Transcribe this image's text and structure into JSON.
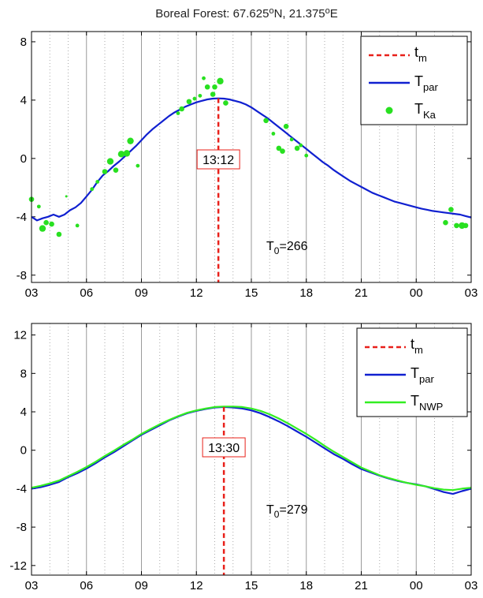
{
  "title": {
    "main": "Boreal Forest: 67.625",
    "deg1": "o",
    "mid": "N, 21.375",
    "deg2": "o",
    "end": "E"
  },
  "legend_symbols": {
    "t_m": "t",
    "t_m_sub": "m",
    "T_par": "T",
    "T_par_sub": "par",
    "T_Ka": "T",
    "T_Ka_sub": "Ka",
    "T_NWP": "T",
    "T_NWP_sub": "NWP"
  },
  "colors": {
    "t_m": "#e8201a",
    "T_par": "#1020d0",
    "T_Ka": "#28e020",
    "T_NWP": "#33ee22",
    "grid_major": "#9a9a9a"
  },
  "chart_data": [
    {
      "type": "line",
      "x_ticks": [
        "03",
        "06",
        "09",
        "12",
        "15",
        "18",
        "21",
        "00",
        "03"
      ],
      "x_tick_hours": [
        3,
        6,
        9,
        12,
        15,
        18,
        21,
        24,
        27
      ],
      "xlim": [
        3,
        27
      ],
      "ylim": [
        -8.5,
        8.7
      ],
      "y_ticks": [
        -8,
        -4,
        0,
        4,
        8
      ],
      "y_tick_labels": [
        "-8",
        "-4",
        "0",
        "4",
        "8"
      ],
      "t_m_hour": 13.2,
      "t_m_label": "13:12",
      "T0_prefix": "T",
      "T0_sub": "0",
      "T0_value": "=266",
      "series": [
        {
          "key": "T_par",
          "kind": "line",
          "x": [
            3.0,
            3.3,
            3.6,
            3.9,
            4.2,
            4.5,
            4.8,
            5.1,
            5.4,
            5.7,
            6.0,
            6.3,
            6.6,
            6.9,
            7.2,
            7.5,
            7.8,
            8.1,
            8.4,
            8.7,
            9.0,
            9.3,
            9.6,
            9.9,
            10.2,
            10.5,
            10.8,
            11.1,
            11.4,
            11.7,
            12.0,
            12.3,
            12.6,
            12.9,
            13.2,
            13.5,
            13.8,
            14.1,
            14.4,
            14.7,
            15.0,
            15.3,
            15.6,
            15.9,
            16.2,
            16.5,
            16.8,
            17.1,
            17.4,
            17.7,
            18.0,
            18.3,
            18.6,
            18.9,
            19.2,
            19.5,
            19.8,
            20.1,
            20.4,
            20.7,
            21.0,
            21.3,
            21.6,
            21.9,
            22.2,
            22.5,
            22.8,
            23.1,
            23.4,
            23.7,
            24.0,
            24.3,
            24.6,
            24.9,
            25.2,
            25.5,
            25.8,
            26.1,
            26.4,
            26.7,
            27.0
          ],
          "y": [
            -4.0,
            -4.25,
            -4.1,
            -4.0,
            -3.85,
            -4.0,
            -3.85,
            -3.55,
            -3.35,
            -3.05,
            -2.6,
            -2.15,
            -1.6,
            -1.15,
            -0.85,
            -0.5,
            -0.2,
            0.15,
            0.5,
            0.85,
            1.25,
            1.65,
            2.0,
            2.3,
            2.6,
            2.9,
            3.15,
            3.35,
            3.55,
            3.7,
            3.85,
            3.95,
            4.05,
            4.1,
            4.12,
            4.1,
            4.05,
            3.95,
            3.85,
            3.7,
            3.5,
            3.25,
            3.0,
            2.75,
            2.45,
            2.15,
            1.85,
            1.55,
            1.25,
            0.95,
            0.65,
            0.35,
            0.05,
            -0.25,
            -0.5,
            -0.8,
            -1.05,
            -1.3,
            -1.55,
            -1.75,
            -1.95,
            -2.15,
            -2.35,
            -2.5,
            -2.65,
            -2.8,
            -2.95,
            -3.05,
            -3.15,
            -3.25,
            -3.35,
            -3.45,
            -3.52,
            -3.6,
            -3.65,
            -3.7,
            -3.75,
            -3.8,
            -3.85,
            -3.95,
            -4.05
          ]
        },
        {
          "key": "T_Ka",
          "kind": "scatter",
          "x": [
            3.0,
            3.4,
            3.6,
            3.8,
            4.1,
            4.5,
            4.9,
            5.5,
            6.3,
            6.6,
            7.0,
            7.3,
            7.6,
            7.9,
            8.2,
            8.4,
            8.8,
            11.0,
            11.2,
            11.6,
            11.9,
            12.2,
            12.4,
            12.6,
            12.9,
            13.0,
            13.3,
            13.6,
            15.8,
            16.2,
            16.5,
            16.7,
            16.9,
            17.2,
            17.5,
            17.7,
            18.0,
            25.6,
            25.9,
            26.2,
            26.5,
            26.7
          ],
          "y": [
            -2.8,
            -3.3,
            -4.8,
            -4.4,
            -4.5,
            -5.2,
            -2.6,
            -4.6,
            -2.1,
            -1.6,
            -0.9,
            -0.2,
            -0.8,
            0.3,
            0.35,
            1.2,
            -0.5,
            3.1,
            3.4,
            3.9,
            4.1,
            4.3,
            5.5,
            4.9,
            4.4,
            4.9,
            5.3,
            3.8,
            2.6,
            1.7,
            0.7,
            0.5,
            2.2,
            1.3,
            0.7,
            0.9,
            0.2,
            -4.4,
            -3.5,
            -4.6,
            -4.6,
            -4.6
          ],
          "size": [
            3,
            2,
            4,
            3,
            3,
            3,
            1,
            2,
            2,
            2,
            3,
            4,
            3,
            4,
            4,
            4,
            2,
            2,
            3,
            3,
            2,
            2,
            2,
            3,
            3,
            3,
            4,
            3,
            3,
            2,
            3,
            3,
            3,
            2,
            3,
            2,
            2,
            3,
            3,
            3,
            4,
            3
          ]
        }
      ]
    },
    {
      "type": "line",
      "x_ticks": [
        "03",
        "06",
        "09",
        "12",
        "15",
        "18",
        "21",
        "00",
        "03"
      ],
      "x_tick_hours": [
        3,
        6,
        9,
        12,
        15,
        18,
        21,
        24,
        27
      ],
      "xlim": [
        3,
        27
      ],
      "ylim": [
        -13,
        13.2
      ],
      "y_ticks": [
        -12,
        -8,
        -4,
        0,
        4,
        8,
        12
      ],
      "y_tick_labels": [
        "-12",
        "-8",
        "-4",
        "0",
        "4",
        "8",
        "12"
      ],
      "t_m_hour": 13.5,
      "t_m_label": "13:30",
      "T0_prefix": "T",
      "T0_sub": "0",
      "T0_value": "=279",
      "series": [
        {
          "key": "T_par",
          "kind": "line",
          "x": [
            3.0,
            3.5,
            4.0,
            4.5,
            5.0,
            5.5,
            6.0,
            6.5,
            7.0,
            7.5,
            8.0,
            8.5,
            9.0,
            9.5,
            10.0,
            10.5,
            11.0,
            11.5,
            12.0,
            12.5,
            13.0,
            13.5,
            14.0,
            14.5,
            15.0,
            15.5,
            16.0,
            16.5,
            17.0,
            17.5,
            18.0,
            18.5,
            19.0,
            19.5,
            20.0,
            20.5,
            21.0,
            21.5,
            22.0,
            22.5,
            23.0,
            23.5,
            24.0,
            24.5,
            25.0,
            25.5,
            26.0,
            26.5,
            27.0
          ],
          "y": [
            -4.0,
            -3.85,
            -3.6,
            -3.3,
            -2.8,
            -2.4,
            -1.9,
            -1.35,
            -0.75,
            -0.2,
            0.4,
            1.0,
            1.6,
            2.1,
            2.6,
            3.1,
            3.5,
            3.85,
            4.1,
            4.3,
            4.45,
            4.5,
            4.45,
            4.35,
            4.15,
            3.85,
            3.45,
            3.0,
            2.5,
            1.95,
            1.4,
            0.8,
            0.2,
            -0.4,
            -0.9,
            -1.45,
            -1.95,
            -2.3,
            -2.65,
            -2.95,
            -3.2,
            -3.4,
            -3.55,
            -3.75,
            -4.05,
            -4.35,
            -4.55,
            -4.25,
            -4.0
          ]
        },
        {
          "key": "T_NWP",
          "kind": "line",
          "x": [
            3.0,
            3.5,
            4.0,
            4.5,
            5.0,
            5.5,
            6.0,
            6.5,
            7.0,
            7.5,
            8.0,
            8.5,
            9.0,
            9.5,
            10.0,
            10.5,
            11.0,
            11.5,
            12.0,
            12.5,
            13.0,
            13.5,
            14.0,
            14.5,
            15.0,
            15.5,
            16.0,
            16.5,
            17.0,
            17.5,
            18.0,
            18.5,
            19.0,
            19.5,
            20.0,
            20.5,
            21.0,
            21.5,
            22.0,
            22.5,
            23.0,
            23.5,
            24.0,
            24.5,
            25.0,
            25.5,
            26.0,
            26.5,
            27.0
          ],
          "y": [
            -3.9,
            -3.7,
            -3.45,
            -3.15,
            -2.7,
            -2.25,
            -1.75,
            -1.2,
            -0.6,
            -0.05,
            0.55,
            1.1,
            1.7,
            2.2,
            2.7,
            3.15,
            3.55,
            3.9,
            4.15,
            4.35,
            4.5,
            4.55,
            4.55,
            4.5,
            4.35,
            4.1,
            3.75,
            3.3,
            2.8,
            2.25,
            1.7,
            1.1,
            0.45,
            -0.15,
            -0.7,
            -1.25,
            -1.8,
            -2.2,
            -2.6,
            -2.9,
            -3.15,
            -3.4,
            -3.6,
            -3.75,
            -3.95,
            -4.1,
            -4.15,
            -4.0,
            -3.9
          ]
        }
      ]
    }
  ]
}
